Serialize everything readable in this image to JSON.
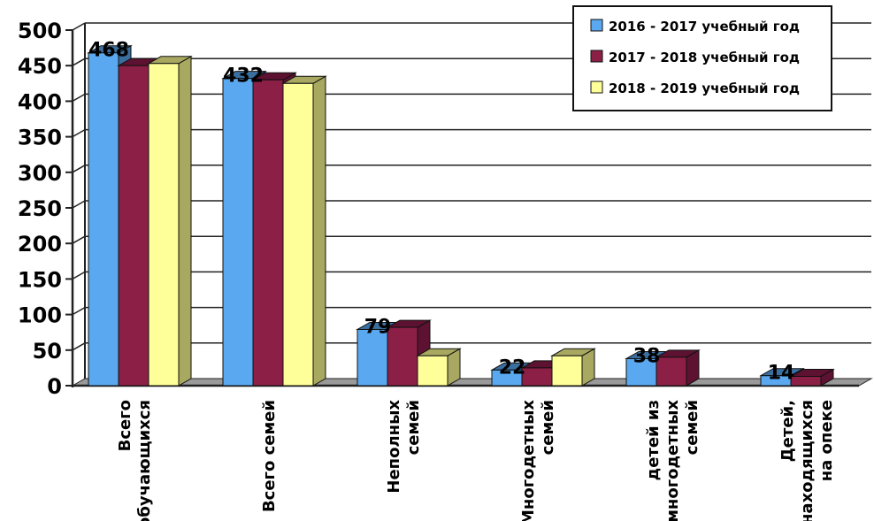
{
  "chart_data": {
    "type": "bar",
    "categories": [
      [
        "Всего",
        "обучающихся"
      ],
      [
        "Всего семей"
      ],
      [
        "Неполных",
        "семей"
      ],
      [
        "Многодетных",
        "семей"
      ],
      [
        "детей из",
        "многодетных",
        "семей"
      ],
      [
        "Детей,",
        "находящихся",
        "на опеке"
      ]
    ],
    "series": [
      {
        "name": "2016 - 2017 учебный год",
        "values": [
          468,
          432,
          79,
          22,
          38,
          14
        ]
      },
      {
        "name": "2017 - 2018 учебный год",
        "values": [
          450,
          430,
          82,
          25,
          40,
          13
        ]
      },
      {
        "name": "2018 - 2019 учебный год",
        "values": [
          453,
          425,
          42,
          42,
          null,
          null
        ]
      }
    ],
    "data_labels": [
      "468",
      "432",
      "79",
      "22",
      "38",
      "14"
    ],
    "colors": {
      "series": [
        "#5aa9f0",
        "#8c1f46",
        "#ffff99"
      ],
      "series_dark": [
        "#3a6fa0",
        "#5c1230",
        "#a8a860"
      ]
    },
    "yticks": [
      0,
      50,
      100,
      150,
      200,
      250,
      300,
      350,
      400,
      450,
      500
    ],
    "ylim": [
      0,
      500
    ],
    "grid": true,
    "legend_position": "top-right",
    "title": "",
    "xlabel": "",
    "ylabel": ""
  }
}
